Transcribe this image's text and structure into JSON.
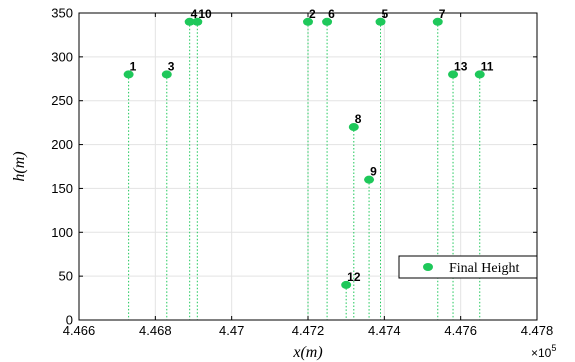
{
  "chart_data": {
    "type": "scatter",
    "xlabel": "x(m)",
    "ylabel": "h(m)",
    "x_multiplier_label": "×10",
    "x_multiplier_exp": "5",
    "xlim": [
      4.466,
      4.478
    ],
    "ylim": [
      0,
      350
    ],
    "x_ticks": [
      4.466,
      4.468,
      4.47,
      4.472,
      4.474,
      4.476,
      4.478
    ],
    "x_tick_labels": [
      "4.466",
      "4.468",
      "4.47",
      "4.472",
      "4.474",
      "4.476",
      "4.478"
    ],
    "y_ticks": [
      0,
      50,
      100,
      150,
      200,
      250,
      300,
      350
    ],
    "y_tick_labels": [
      "0",
      "50",
      "100",
      "150",
      "200",
      "250",
      "300",
      "350"
    ],
    "grid": true,
    "legend_position": "bottom-right",
    "series": [
      {
        "name": "Final Height",
        "color": "#1ec85a",
        "stems": true,
        "points": [
          {
            "label": "1",
            "x": 4.4673,
            "y": 280
          },
          {
            "label": "2",
            "x": 4.472,
            "y": 340
          },
          {
            "label": "3",
            "x": 4.4683,
            "y": 280
          },
          {
            "label": "4",
            "x": 4.4689,
            "y": 340
          },
          {
            "label": "5",
            "x": 4.4739,
            "y": 340
          },
          {
            "label": "6",
            "x": 4.4725,
            "y": 340
          },
          {
            "label": "7",
            "x": 4.4754,
            "y": 340
          },
          {
            "label": "8",
            "x": 4.4732,
            "y": 220
          },
          {
            "label": "9",
            "x": 4.4736,
            "y": 160
          },
          {
            "label": "10",
            "x": 4.4691,
            "y": 340
          },
          {
            "label": "11",
            "x": 4.4765,
            "y": 280
          },
          {
            "label": "12",
            "x": 4.473,
            "y": 40
          },
          {
            "label": "13",
            "x": 4.4758,
            "y": 280
          }
        ]
      }
    ]
  }
}
